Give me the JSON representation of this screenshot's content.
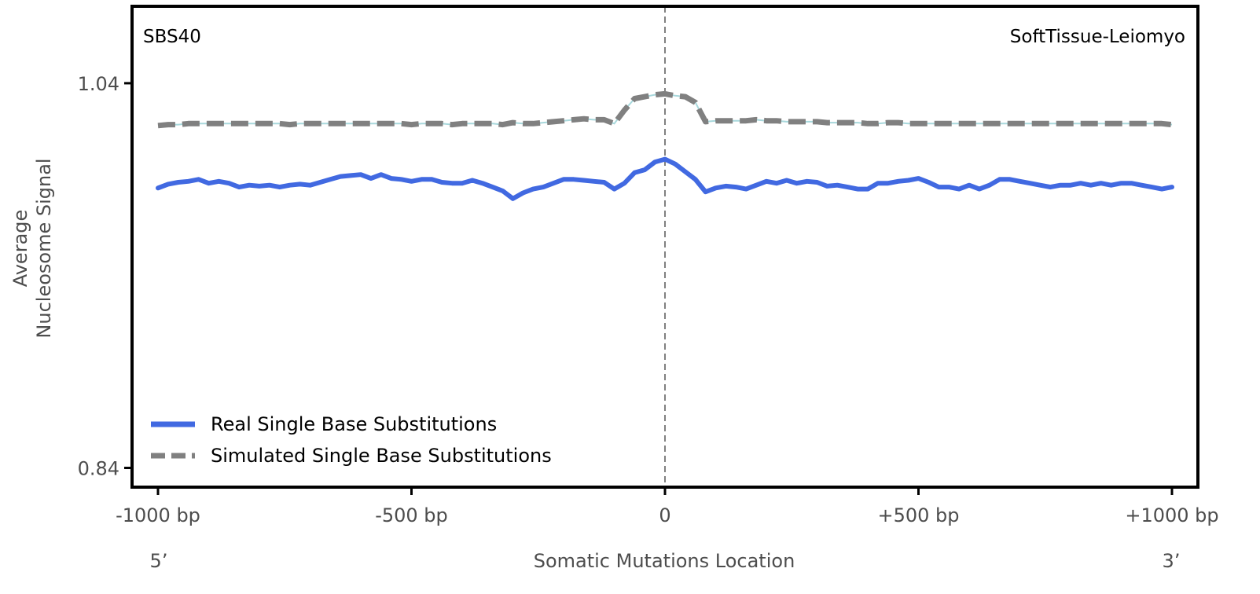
{
  "chart_data": {
    "type": "line",
    "signature_label": "SBS40",
    "tissue_label": "SoftTissue-Leiomyo",
    "ylabel_line1": "Average",
    "ylabel_line2": "Nucleosome Signal",
    "xlabel": "Somatic Mutations Location",
    "five_prime_label": "5’",
    "three_prime_label": "3’",
    "xlim": [
      -1000,
      1000
    ],
    "ylim": [
      0.83,
      1.08
    ],
    "x_ticks": [
      {
        "value": -1000,
        "label": "-1000 bp"
      },
      {
        "value": -500,
        "label": "-500 bp"
      },
      {
        "value": 0,
        "label": "0"
      },
      {
        "value": 500,
        "label": "+500 bp"
      },
      {
        "value": 1000,
        "label": "+1000 bp"
      }
    ],
    "y_ticks": [
      {
        "value": 1.04,
        "label": "1.04"
      },
      {
        "value": 0.84,
        "label": "0.84"
      }
    ],
    "center_line_x": 0,
    "legend_position": "lower-left",
    "series": [
      {
        "name": "Real Single Base Substitutions",
        "color": "#4169e1",
        "style": "solid",
        "x": [
          -1000,
          -980,
          -960,
          -940,
          -920,
          -900,
          -880,
          -860,
          -840,
          -820,
          -800,
          -780,
          -760,
          -740,
          -720,
          -700,
          -680,
          -660,
          -640,
          -620,
          -600,
          -580,
          -560,
          -540,
          -520,
          -500,
          -480,
          -460,
          -440,
          -420,
          -400,
          -380,
          -360,
          -340,
          -320,
          -300,
          -280,
          -260,
          -240,
          -220,
          -200,
          -180,
          -160,
          -140,
          -120,
          -100,
          -80,
          -60,
          -40,
          -20,
          0,
          20,
          40,
          60,
          80,
          100,
          120,
          140,
          160,
          180,
          200,
          220,
          240,
          260,
          280,
          300,
          320,
          340,
          360,
          380,
          400,
          420,
          440,
          460,
          480,
          500,
          520,
          540,
          560,
          580,
          600,
          620,
          640,
          660,
          680,
          700,
          720,
          740,
          760,
          780,
          800,
          820,
          840,
          860,
          880,
          900,
          920,
          940,
          960,
          980,
          1000
        ],
        "values": [
          0.9855,
          0.9875,
          0.9885,
          0.989,
          0.99,
          0.988,
          0.989,
          0.988,
          0.986,
          0.987,
          0.9865,
          0.987,
          0.986,
          0.987,
          0.9875,
          0.987,
          0.9885,
          0.99,
          0.9915,
          0.992,
          0.9925,
          0.9905,
          0.9925,
          0.9905,
          0.99,
          0.989,
          0.99,
          0.99,
          0.9885,
          0.988,
          0.988,
          0.9895,
          0.988,
          0.986,
          0.984,
          0.98,
          0.983,
          0.985,
          0.986,
          0.988,
          0.99,
          0.99,
          0.9895,
          0.989,
          0.9885,
          0.985,
          0.988,
          0.9935,
          0.995,
          0.999,
          1.0005,
          0.998,
          0.994,
          0.99,
          0.9835,
          0.9855,
          0.9865,
          0.986,
          0.985,
          0.987,
          0.989,
          0.988,
          0.9895,
          0.988,
          0.989,
          0.9885,
          0.9865,
          0.987,
          0.986,
          0.985,
          0.985,
          0.988,
          0.988,
          0.989,
          0.9895,
          0.9905,
          0.9885,
          0.986,
          0.986,
          0.985,
          0.987,
          0.985,
          0.987,
          0.99,
          0.99,
          0.989,
          0.988,
          0.987,
          0.986,
          0.987,
          0.987,
          0.988,
          0.987,
          0.988,
          0.987,
          0.988,
          0.988,
          0.987,
          0.986,
          0.985,
          0.986
        ]
      },
      {
        "name": "Simulated Single Base Substitutions",
        "color": "#808080",
        "style": "dashed",
        "x": [
          -1000,
          -980,
          -960,
          -940,
          -920,
          -900,
          -880,
          -860,
          -840,
          -820,
          -800,
          -780,
          -760,
          -740,
          -720,
          -700,
          -680,
          -660,
          -640,
          -620,
          -600,
          -580,
          -560,
          -540,
          -520,
          -500,
          -480,
          -460,
          -440,
          -420,
          -400,
          -380,
          -360,
          -340,
          -320,
          -300,
          -280,
          -260,
          -240,
          -220,
          -200,
          -180,
          -160,
          -140,
          -120,
          -100,
          -80,
          -60,
          -40,
          -20,
          0,
          20,
          40,
          60,
          80,
          100,
          120,
          140,
          160,
          180,
          200,
          220,
          240,
          260,
          280,
          300,
          320,
          340,
          360,
          380,
          400,
          420,
          440,
          460,
          480,
          500,
          520,
          540,
          560,
          580,
          600,
          620,
          640,
          660,
          680,
          700,
          720,
          740,
          760,
          780,
          800,
          820,
          840,
          860,
          880,
          900,
          920,
          940,
          960,
          980,
          1000
        ],
        "values": [
          1.018,
          1.0185,
          1.0185,
          1.019,
          1.019,
          1.019,
          1.019,
          1.019,
          1.019,
          1.019,
          1.019,
          1.019,
          1.019,
          1.0185,
          1.019,
          1.019,
          1.019,
          1.019,
          1.019,
          1.019,
          1.019,
          1.019,
          1.019,
          1.019,
          1.019,
          1.0185,
          1.019,
          1.019,
          1.019,
          1.0185,
          1.019,
          1.019,
          1.019,
          1.019,
          1.0185,
          1.0195,
          1.019,
          1.019,
          1.0195,
          1.02,
          1.0205,
          1.021,
          1.0215,
          1.021,
          1.021,
          1.019,
          1.026,
          1.032,
          1.033,
          1.034,
          1.0345,
          1.0335,
          1.033,
          1.03,
          1.02,
          1.0205,
          1.0205,
          1.0205,
          1.0205,
          1.021,
          1.0205,
          1.0205,
          1.02,
          1.02,
          1.02,
          1.02,
          1.0195,
          1.0195,
          1.0195,
          1.0195,
          1.019,
          1.019,
          1.0195,
          1.0195,
          1.019,
          1.019,
          1.019,
          1.019,
          1.019,
          1.019,
          1.019,
          1.019,
          1.019,
          1.019,
          1.019,
          1.019,
          1.019,
          1.019,
          1.019,
          1.019,
          1.019,
          1.019,
          1.019,
          1.019,
          1.019,
          1.019,
          1.019,
          1.019,
          1.019,
          1.019,
          1.0185
        ]
      }
    ]
  }
}
